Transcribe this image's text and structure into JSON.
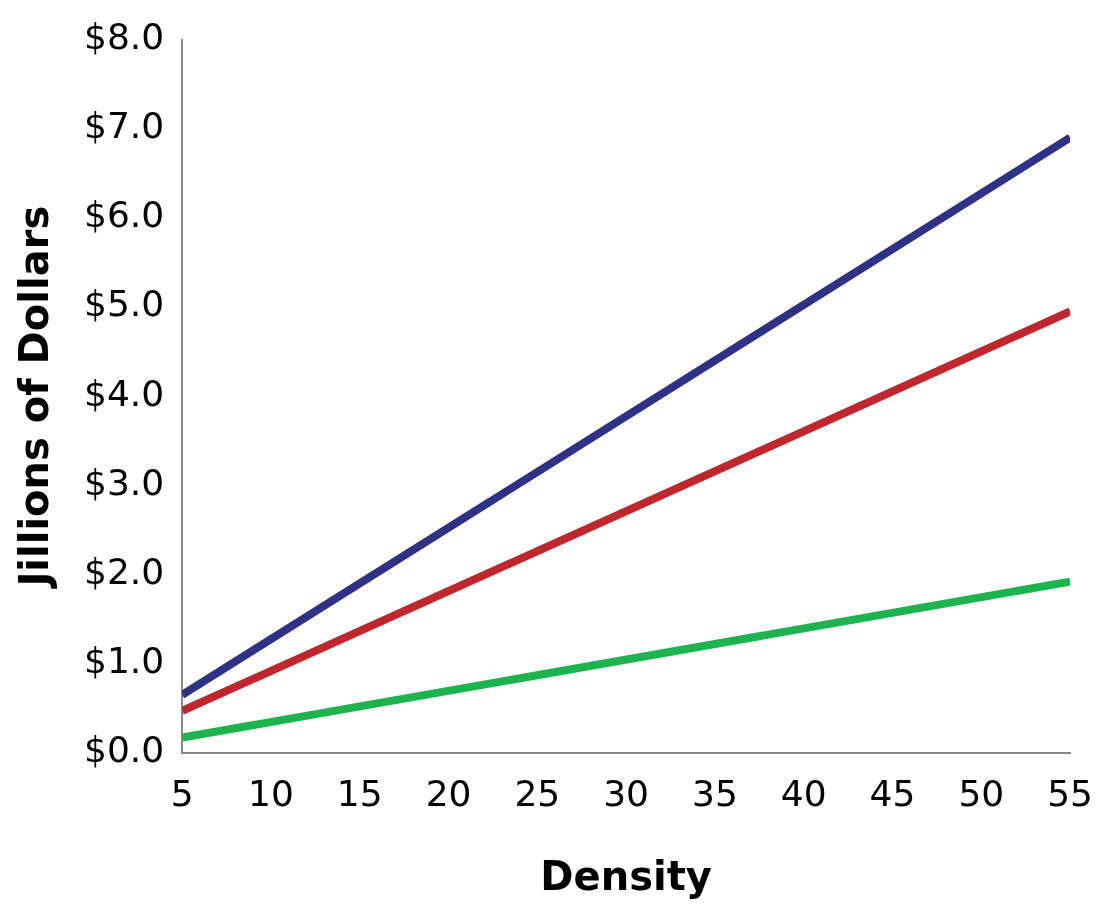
{
  "chart_data": {
    "type": "line",
    "xlabel": "Density",
    "ylabel": "Jillions of Dollars",
    "xlim": [
      5,
      55
    ],
    "xticks": [
      5,
      10,
      15,
      20,
      25,
      30,
      35,
      40,
      45,
      50,
      55
    ],
    "ylim": [
      0,
      8
    ],
    "yticks": [
      {
        "value": 0,
        "label": "$0.0"
      },
      {
        "value": 1,
        "label": "$1.0"
      },
      {
        "value": 2,
        "label": "$2.0"
      },
      {
        "value": 3,
        "label": "$3.0"
      },
      {
        "value": 4,
        "label": "$4.0"
      },
      {
        "value": 5,
        "label": "$5.0"
      },
      {
        "value": 6,
        "label": "$6.0"
      },
      {
        "value": 7,
        "label": "$7.0"
      },
      {
        "value": 8,
        "label": "$8.0"
      }
    ],
    "x": [
      5,
      55
    ],
    "grid": false,
    "legend": false,
    "marker": "none",
    "line_style": "solid",
    "series": [
      {
        "color": "#2e3184",
        "values": [
          0.65,
          6.9
        ]
      },
      {
        "color": "#c0262d",
        "values": [
          0.47,
          4.95
        ]
      },
      {
        "color": "#1db34f",
        "values": [
          0.17,
          1.92
        ]
      }
    ]
  }
}
